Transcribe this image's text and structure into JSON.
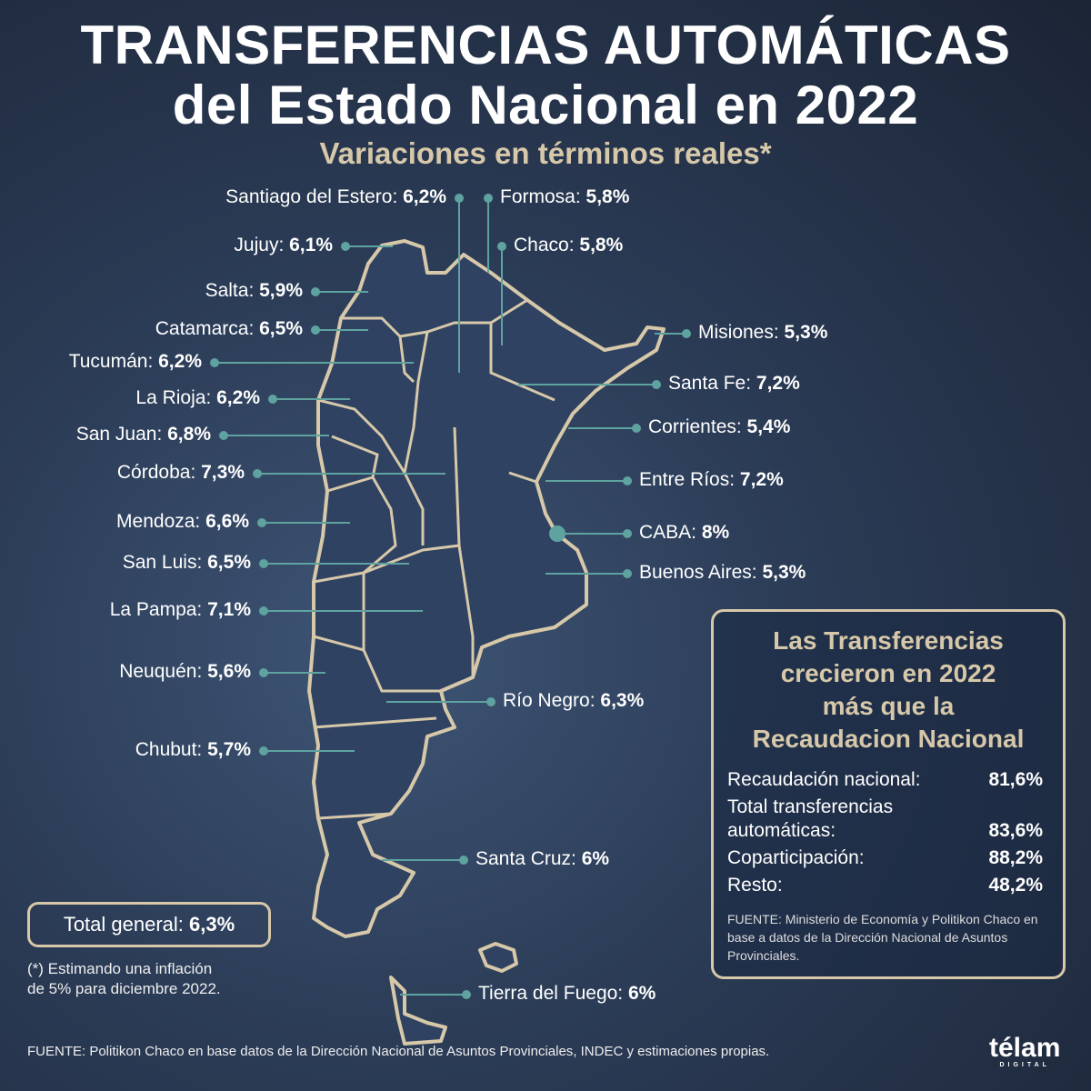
{
  "title_line1": "TRANSFERENCIAS AUTOMÁTICAS",
  "title_line2": "del Estado Nacional en 2022",
  "subtitle": "Variaciones en términos reales*",
  "provinces": [
    {
      "name": "Santiago del Estero:",
      "value": "6,2%"
    },
    {
      "name": "Formosa:",
      "value": "5,8%"
    },
    {
      "name": "Jujuy:",
      "value": "6,1%"
    },
    {
      "name": "Chaco:",
      "value": "5,8%"
    },
    {
      "name": "Salta:",
      "value": "5,9%"
    },
    {
      "name": "Catamarca:",
      "value": "6,5%"
    },
    {
      "name": "Tucumán:",
      "value": "6,2%"
    },
    {
      "name": "La Rioja:",
      "value": "6,2%"
    },
    {
      "name": "San Juan:",
      "value": "6,8%"
    },
    {
      "name": "Córdoba:",
      "value": "7,3%"
    },
    {
      "name": "Mendoza:",
      "value": "6,6%"
    },
    {
      "name": "San Luis:",
      "value": "6,5%"
    },
    {
      "name": "La Pampa:",
      "value": "7,1%"
    },
    {
      "name": "Neuquén:",
      "value": "5,6%"
    },
    {
      "name": "Chubut:",
      "value": "5,7%"
    },
    {
      "name": "Misiones:",
      "value": "5,3%"
    },
    {
      "name": "Santa Fe:",
      "value": "7,2%"
    },
    {
      "name": "Corrientes:",
      "value": "5,4%"
    },
    {
      "name": "Entre Ríos:",
      "value": "7,2%"
    },
    {
      "name": "CABA:",
      "value": "8%"
    },
    {
      "name": "Buenos Aires:",
      "value": "5,3%"
    },
    {
      "name": "Río Negro:",
      "value": "6,3%"
    },
    {
      "name": "Santa Cruz:",
      "value": "6%"
    },
    {
      "name": "Tierra del Fuego:",
      "value": "6%"
    }
  ],
  "box": {
    "heading": [
      "Las Transferencias",
      "crecieron en 2022",
      "más que la",
      "Recaudacion Nacional"
    ],
    "rows": [
      {
        "label": "Recaudación nacional:",
        "value": "81,6%"
      },
      {
        "label": "Total transferencias",
        "value": ""
      },
      {
        "label": "automáticas:",
        "value": "83,6%"
      },
      {
        "label": "Coparticipación:",
        "value": "88,2%"
      },
      {
        "label": "Resto:",
        "value": "48,2%"
      }
    ],
    "source": "FUENTE: Ministerio de Economía y Politikon Chaco en base a datos de la Dirección Nacional de Asuntos Provinciales."
  },
  "total": {
    "label": "Total general:",
    "value": "6,3%"
  },
  "note": [
    "(*) Estimando una inflación",
    "de 5% para diciembre 2022."
  ],
  "footer": "FUENTE: Politikon Chaco en base datos de la Dirección Nacional de Asuntos Provinciales, INDEC y estimaciones propias.",
  "logo": {
    "name": "télam",
    "tag": "DIGITAL"
  },
  "colors": {
    "accent": "#d6c8a9",
    "marker": "#5fa3a0"
  }
}
